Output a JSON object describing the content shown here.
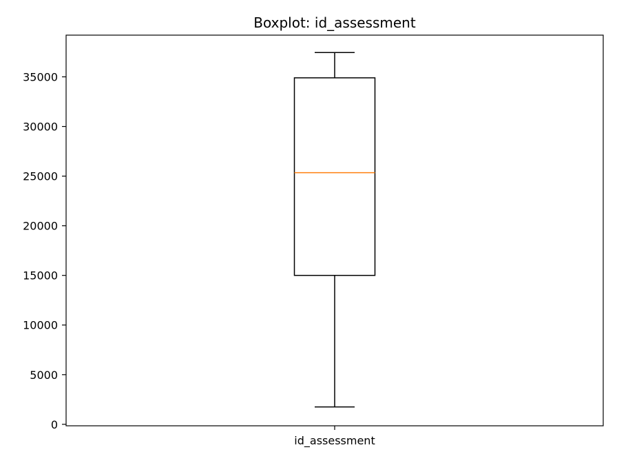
{
  "chart_data": {
    "type": "boxplot",
    "title": "Boxplot: id_assessment",
    "categories": [
      "id_assessment"
    ],
    "boxes": [
      {
        "category": "id_assessment",
        "whisker_low": 1750,
        "q1": 15000,
        "median": 25350,
        "q3": 34900,
        "whisker_high": 37450
      }
    ],
    "xlabel": "",
    "ylabel": "",
    "ylim": [
      -150,
      39200
    ],
    "yticks": [
      0,
      5000,
      10000,
      15000,
      20000,
      25000,
      30000,
      35000
    ],
    "ytick_labels": [
      "0",
      "5000",
      "10000",
      "15000",
      "20000",
      "25000",
      "30000",
      "35000"
    ],
    "grid": false,
    "legend": "none",
    "colors": {
      "box": "#000000",
      "median": "#ff7f0e",
      "background": "#ffffff"
    }
  }
}
